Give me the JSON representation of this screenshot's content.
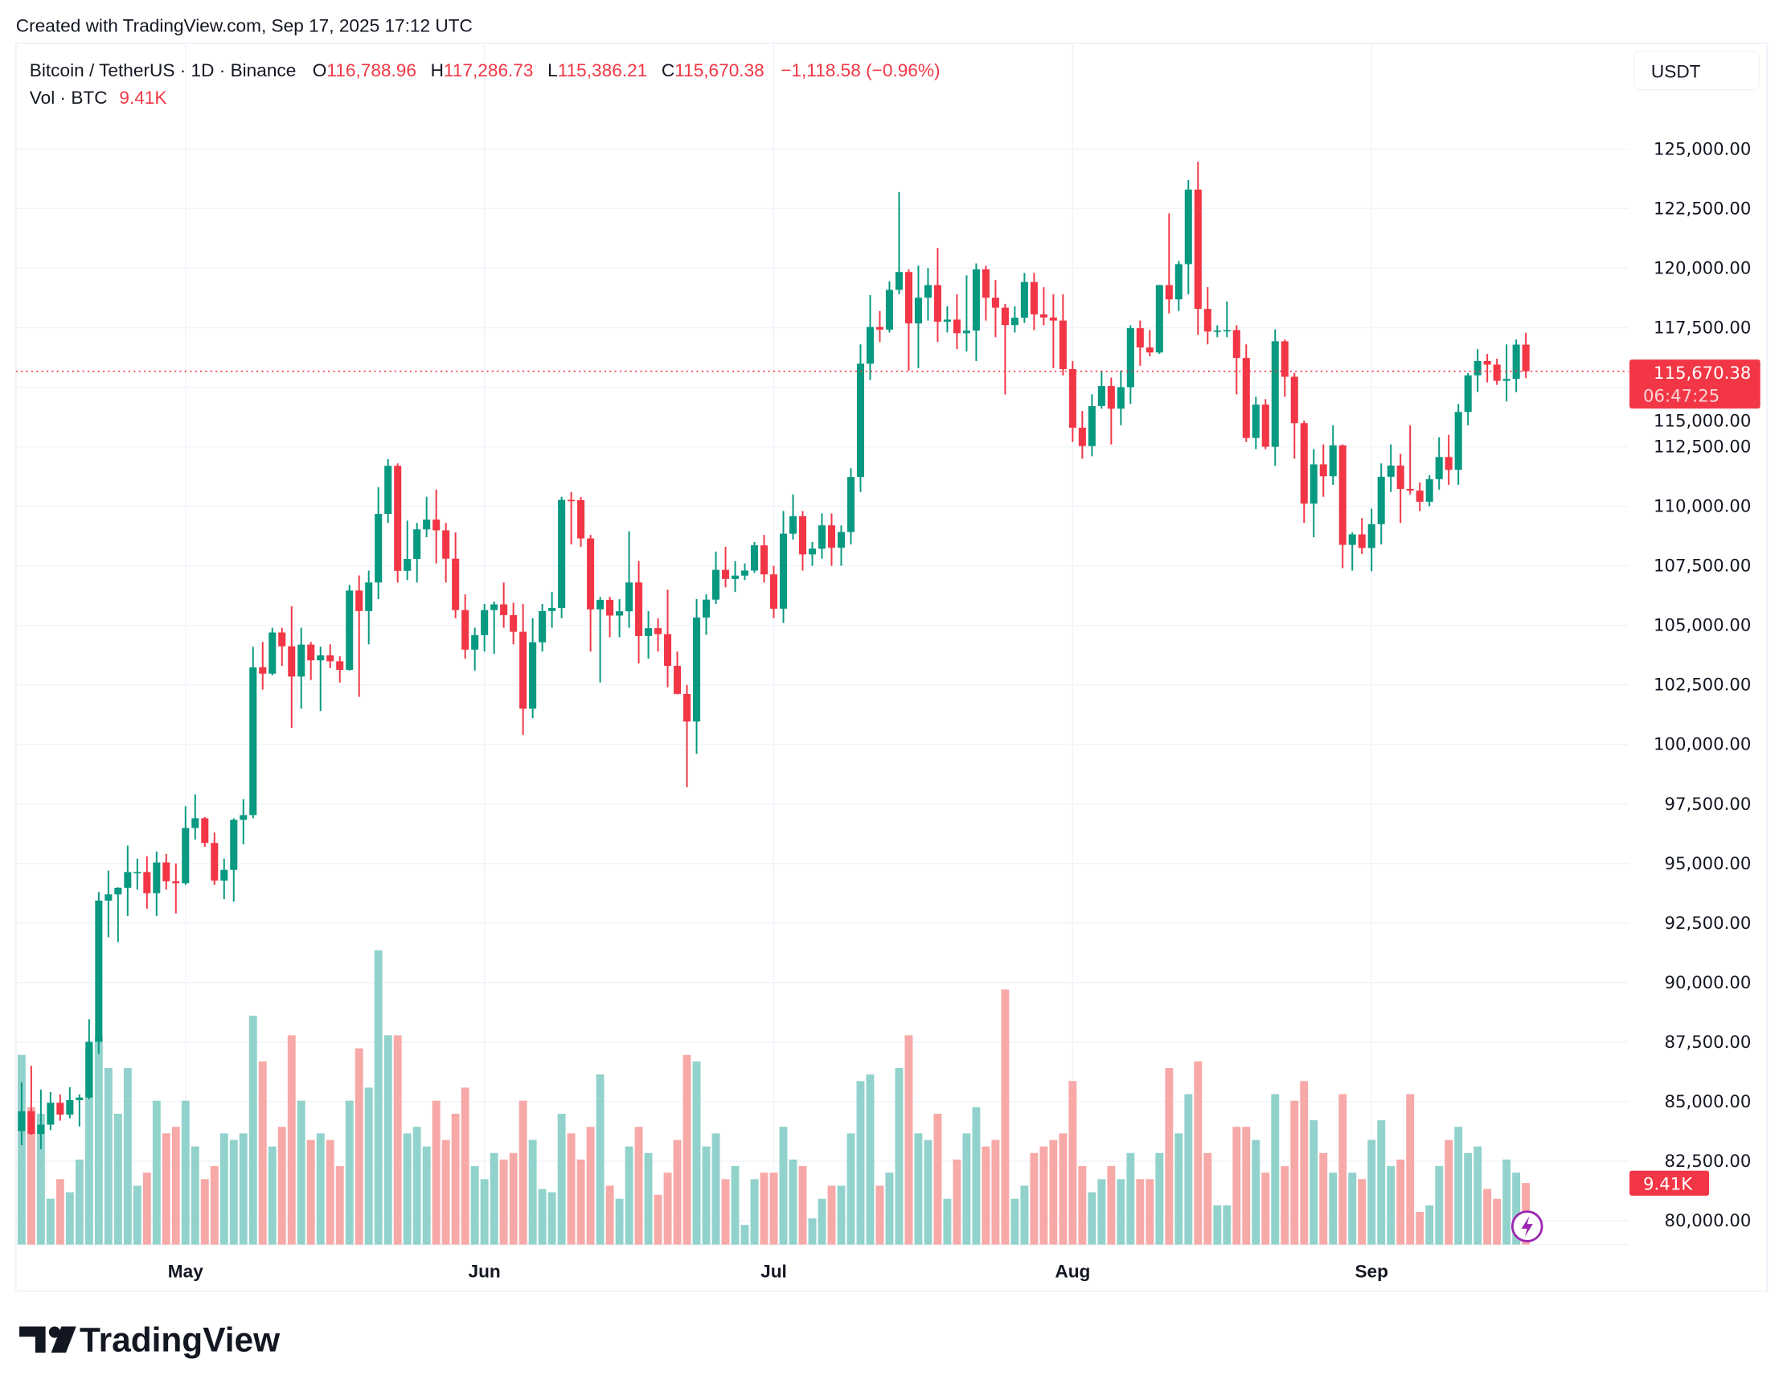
{
  "header": {
    "created": "Created with TradingView.com, Sep 17, 2025 17:12 UTC",
    "symbol": "Bitcoin / TetherUS · 1D · Binance",
    "o_label": "O",
    "o": "116,788.96",
    "h_label": "H",
    "h": "117,286.73",
    "l_label": "L",
    "l": "115,386.21",
    "c_label": "C",
    "c": "115,670.38",
    "change": "−1,118.58 (−0.96%)",
    "vol_label": "Vol · BTC",
    "vol": "9.41K"
  },
  "currency_button": "USDT",
  "last_price_label": "115,670.38",
  "countdown": "06:47:25",
  "volume_label": "9.41K",
  "logo_text": "TradingView",
  "colors": {
    "up": "#089981",
    "down": "#F23645",
    "vol_up": "#92D2CC",
    "vol_down": "#F7A9A7",
    "grid": "#F0F3FA",
    "lightning": "#9C27B0"
  },
  "icons": {
    "lightning": "lightning-icon",
    "logo": "tradingview-logo-icon"
  },
  "chart_data": {
    "type": "candlestick",
    "ylim": [
      79000,
      126500
    ],
    "y_ticks": [
      "125,000.00",
      "122,500.00",
      "120,000.00",
      "117,500.00",
      "115,000.00",
      "112,500.00",
      "110,000.00",
      "107,500.00",
      "105,000.00",
      "102,500.00",
      "100,000.00",
      "97,500.00",
      "95,000.00",
      "92,500.00",
      "90,000.00",
      "87,500.00",
      "85,000.00",
      "82,500.00",
      "80,000.00"
    ],
    "x_ticks": [
      {
        "label": "May",
        "date": "2025-05-01"
      },
      {
        "label": "Jun",
        "date": "2025-06-01"
      },
      {
        "label": "Jul",
        "date": "2025-07-01"
      },
      {
        "label": "Aug",
        "date": "2025-08-01"
      },
      {
        "label": "Sep",
        "date": "2025-09-01"
      }
    ],
    "start_date": "2025-04-14",
    "last_price": 115670.38,
    "grid": true,
    "ohlc_columns": [
      "open",
      "high",
      "low",
      "close"
    ],
    "ohlc": [
      [
        83760,
        85800,
        83170,
        84590
      ],
      [
        84590,
        86500,
        83600,
        83640
      ],
      [
        83640,
        85500,
        83000,
        84030
      ],
      [
        84030,
        85400,
        83800,
        84950
      ],
      [
        84950,
        85300,
        84200,
        84450
      ],
      [
        84450,
        85600,
        84300,
        85060
      ],
      [
        85060,
        85300,
        83950,
        85170
      ],
      [
        85170,
        88460,
        85100,
        87510
      ],
      [
        87510,
        93800,
        87000,
        93440
      ],
      [
        93440,
        94700,
        91900,
        93700
      ],
      [
        93700,
        94000,
        91700,
        93980
      ],
      [
        93980,
        95750,
        92800,
        94640
      ],
      [
        94640,
        95200,
        93900,
        94640
      ],
      [
        94640,
        95300,
        93100,
        93750
      ],
      [
        93750,
        95500,
        92800,
        95040
      ],
      [
        95040,
        95400,
        93900,
        94250
      ],
      [
        94250,
        95000,
        92900,
        94170
      ],
      [
        94170,
        97400,
        94100,
        96490
      ],
      [
        96490,
        97900,
        96000,
        96900
      ],
      [
        96900,
        96950,
        95700,
        95860
      ],
      [
        95860,
        96300,
        94100,
        94280
      ],
      [
        94280,
        95200,
        93500,
        94730
      ],
      [
        94730,
        96900,
        93400,
        96830
      ],
      [
        96830,
        97700,
        95800,
        97030
      ],
      [
        97030,
        104100,
        96900,
        103240
      ],
      [
        103240,
        104300,
        102300,
        102970
      ],
      [
        102970,
        104900,
        102900,
        104700
      ],
      [
        104700,
        104900,
        103300,
        104120
      ],
      [
        104120,
        105800,
        100700,
        102850
      ],
      [
        102850,
        104900,
        101500,
        104190
      ],
      [
        104190,
        104300,
        102700,
        103530
      ],
      [
        103530,
        104100,
        101400,
        103740
      ],
      [
        103740,
        104200,
        103200,
        103490
      ],
      [
        103490,
        103700,
        102600,
        103130
      ],
      [
        103130,
        106700,
        103100,
        106460
      ],
      [
        106460,
        107100,
        102000,
        105600
      ],
      [
        105600,
        107300,
        104200,
        106800
      ],
      [
        106800,
        110800,
        106100,
        109680
      ],
      [
        109680,
        111980,
        109300,
        111700
      ],
      [
        111700,
        111800,
        106800,
        107290
      ],
      [
        107290,
        109400,
        106900,
        107790
      ],
      [
        107790,
        109300,
        106800,
        109030
      ],
      [
        109030,
        110400,
        108700,
        109440
      ],
      [
        109440,
        110700,
        107600,
        108990
      ],
      [
        108990,
        109300,
        106800,
        107800
      ],
      [
        107800,
        108900,
        105300,
        105640
      ],
      [
        105640,
        106300,
        103600,
        103980
      ],
      [
        103980,
        104900,
        103100,
        104590
      ],
      [
        104590,
        105900,
        103900,
        105640
      ],
      [
        105640,
        106000,
        103800,
        105880
      ],
      [
        105880,
        106800,
        104900,
        105430
      ],
      [
        105430,
        105950,
        104200,
        104730
      ],
      [
        104730,
        105900,
        100400,
        101500
      ],
      [
        101500,
        105300,
        101100,
        104290
      ],
      [
        104290,
        105900,
        103900,
        105600
      ],
      [
        105600,
        106400,
        104900,
        105730
      ],
      [
        105730,
        110400,
        105300,
        110270
      ],
      [
        110270,
        110600,
        108400,
        110260
      ],
      [
        110260,
        110390,
        108300,
        108650
      ],
      [
        108650,
        108800,
        103900,
        105670
      ],
      [
        105670,
        106200,
        102600,
        106070
      ],
      [
        106070,
        106200,
        104500,
        105410
      ],
      [
        105410,
        106100,
        104500,
        105590
      ],
      [
        105590,
        108950,
        104900,
        106800
      ],
      [
        106800,
        107700,
        103400,
        104550
      ],
      [
        104550,
        105600,
        103600,
        104880
      ],
      [
        104880,
        105300,
        103900,
        104630
      ],
      [
        104630,
        106500,
        102400,
        103300
      ],
      [
        103300,
        103900,
        102100,
        102120
      ],
      [
        102120,
        102500,
        98200,
        100960
      ],
      [
        100960,
        106100,
        99600,
        105330
      ],
      [
        105330,
        106300,
        104600,
        106080
      ],
      [
        106080,
        108100,
        105900,
        107330
      ],
      [
        107330,
        108300,
        106600,
        106950
      ],
      [
        106950,
        107700,
        106400,
        107090
      ],
      [
        107090,
        107600,
        106900,
        107300
      ],
      [
        107300,
        108500,
        107200,
        108360
      ],
      [
        108360,
        108800,
        106800,
        107140
      ],
      [
        107140,
        107500,
        105300,
        105700
      ],
      [
        105700,
        109800,
        105100,
        108850
      ],
      [
        108850,
        110500,
        108600,
        109580
      ],
      [
        109580,
        109800,
        107300,
        107980
      ],
      [
        107980,
        108500,
        107500,
        108220
      ],
      [
        108220,
        109700,
        107800,
        109200
      ],
      [
        109200,
        109700,
        107500,
        108260
      ],
      [
        108260,
        109200,
        107500,
        108920
      ],
      [
        108920,
        111600,
        108400,
        111230
      ],
      [
        111230,
        116800,
        110600,
        115990
      ],
      [
        115990,
        118870,
        115300,
        117530
      ],
      [
        117530,
        118200,
        116900,
        117420
      ],
      [
        117420,
        119450,
        117300,
        119090
      ],
      [
        119090,
        123200,
        118900,
        119840
      ],
      [
        119840,
        119950,
        115700,
        117680
      ],
      [
        117680,
        120100,
        115800,
        118760
      ],
      [
        118760,
        120000,
        117800,
        119290
      ],
      [
        119290,
        120850,
        116900,
        117750
      ],
      [
        117750,
        118400,
        117300,
        117840
      ],
      [
        117840,
        118900,
        116600,
        117270
      ],
      [
        117270,
        119700,
        116500,
        117380
      ],
      [
        117380,
        120200,
        116100,
        119950
      ],
      [
        119950,
        120100,
        117800,
        118760
      ],
      [
        118760,
        119500,
        117100,
        118340
      ],
      [
        118340,
        118500,
        114700,
        117610
      ],
      [
        117610,
        118400,
        117300,
        117920
      ],
      [
        117920,
        119800,
        117700,
        119420
      ],
      [
        119420,
        119800,
        117400,
        118060
      ],
      [
        118060,
        119200,
        117600,
        117930
      ],
      [
        117930,
        118900,
        115800,
        117800
      ],
      [
        117800,
        118900,
        115500,
        115760
      ],
      [
        115760,
        116100,
        112700,
        113300
      ],
      [
        113300,
        114000,
        112000,
        112530
      ],
      [
        112530,
        114700,
        112100,
        114210
      ],
      [
        114210,
        115700,
        114100,
        115050
      ],
      [
        115050,
        115400,
        112600,
        114100
      ],
      [
        114100,
        115700,
        113400,
        115000
      ],
      [
        115000,
        117600,
        114300,
        117480
      ],
      [
        117480,
        117800,
        115900,
        116670
      ],
      [
        116670,
        117400,
        116300,
        116460
      ],
      [
        116460,
        119300,
        116400,
        119290
      ],
      [
        119290,
        122300,
        118100,
        118690
      ],
      [
        118690,
        120300,
        118200,
        120170
      ],
      [
        120170,
        123700,
        118900,
        123300
      ],
      [
        123300,
        124470,
        117200,
        118290
      ],
      [
        118290,
        119200,
        116800,
        117340
      ],
      [
        117340,
        117600,
        117100,
        117380
      ],
      [
        117380,
        118600,
        117100,
        117400
      ],
      [
        117400,
        117600,
        114700,
        116230
      ],
      [
        116230,
        116800,
        112700,
        112870
      ],
      [
        112870,
        114600,
        112400,
        114270
      ],
      [
        114270,
        114500,
        112400,
        112500
      ],
      [
        112500,
        117430,
        111700,
        116930
      ],
      [
        116930,
        117000,
        114600,
        115440
      ],
      [
        115440,
        115600,
        112000,
        113490
      ],
      [
        113490,
        113600,
        109300,
        110110
      ],
      [
        110110,
        112400,
        108700,
        111760
      ],
      [
        111760,
        112600,
        110400,
        111260
      ],
      [
        111260,
        113400,
        110900,
        112560
      ],
      [
        112560,
        112600,
        107400,
        108380
      ],
      [
        108380,
        108900,
        107300,
        108820
      ],
      [
        108820,
        109500,
        108000,
        108250
      ],
      [
        108250,
        109900,
        107270,
        109250
      ],
      [
        109250,
        111800,
        108400,
        111240
      ],
      [
        111240,
        112600,
        110600,
        111710
      ],
      [
        111710,
        112200,
        109300,
        110730
      ],
      [
        110730,
        113400,
        110500,
        110660
      ],
      [
        110660,
        111000,
        109800,
        110190
      ],
      [
        110190,
        111300,
        110000,
        111140
      ],
      [
        111140,
        112900,
        110700,
        112070
      ],
      [
        112070,
        113000,
        110900,
        111530
      ],
      [
        111530,
        114300,
        110900,
        113960
      ],
      [
        113960,
        115600,
        113400,
        115500
      ],
      [
        115500,
        116600,
        114800,
        116100
      ],
      [
        116100,
        116400,
        115200,
        115950
      ],
      [
        115950,
        116200,
        115100,
        115270
      ],
      [
        115270,
        116800,
        114400,
        115350
      ],
      [
        115350,
        117000,
        114800,
        116790
      ],
      [
        116788.96,
        117286.73,
        115386.21,
        115670.38
      ]
    ],
    "volume_unit": "K BTC",
    "volume": [
      29,
      21,
      20,
      7,
      10,
      8,
      13,
      30,
      32,
      27,
      20,
      27,
      9,
      11,
      22,
      17,
      18,
      22,
      15,
      10,
      12,
      17,
      16,
      17,
      35,
      28,
      15,
      18,
      32,
      22,
      16,
      17,
      16,
      12,
      22,
      30,
      24,
      45,
      32,
      32,
      17,
      18,
      15,
      22,
      16,
      20,
      24,
      12,
      10,
      14,
      13,
      14,
      22,
      16,
      8.5,
      8,
      20,
      17,
      13,
      18,
      26,
      9,
      7,
      15,
      18,
      14,
      7.6,
      11,
      16,
      29,
      28,
      15,
      17,
      10,
      12,
      3,
      10,
      11,
      11,
      18,
      13,
      12,
      4,
      7,
      9,
      9,
      17,
      25,
      26,
      9,
      11,
      27,
      32,
      17,
      16,
      20,
      7,
      13,
      17,
      21,
      15,
      16,
      39,
      7,
      9,
      14,
      15,
      16,
      17,
      25,
      12,
      8,
      10,
      12,
      10,
      14,
      10,
      10,
      14,
      27,
      17,
      23,
      28,
      14,
      6,
      6,
      18,
      18,
      16,
      11,
      23,
      12,
      22,
      25,
      19,
      14,
      11,
      23,
      11,
      10,
      16,
      19,
      12,
      13,
      23,
      5,
      6,
      12,
      16,
      18,
      14,
      15,
      8.5,
      7,
      13,
      11,
      9.41
    ]
  }
}
